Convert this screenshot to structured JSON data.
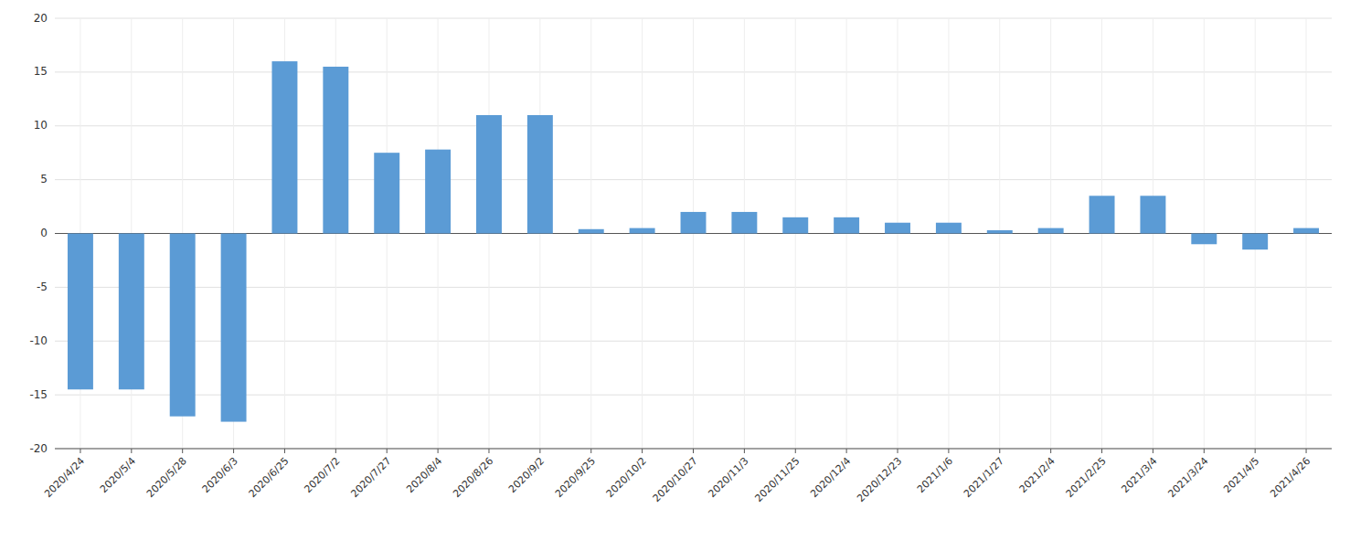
{
  "chart_data": {
    "type": "bar",
    "categories": [
      "2020/4/24",
      "2020/5/4",
      "2020/5/28",
      "2020/6/3",
      "2020/6/25",
      "2020/7/2",
      "2020/7/27",
      "2020/8/4",
      "2020/8/26",
      "2020/9/2",
      "2020/9/25",
      "2020/10/2",
      "2020/10/27",
      "2020/11/3",
      "2020/11/25",
      "2020/12/4",
      "2020/12/23",
      "2021/1/6",
      "2021/1/27",
      "2021/2/4",
      "2021/2/25",
      "2021/3/4",
      "2021/3/24",
      "2021/4/5",
      "2021/4/26"
    ],
    "values": [
      -14.5,
      -14.5,
      -17.0,
      -17.5,
      16.0,
      15.5,
      7.5,
      7.8,
      11.0,
      11.0,
      0.4,
      0.5,
      2.0,
      2.0,
      1.5,
      1.5,
      1.0,
      1.0,
      0.3,
      0.5,
      3.5,
      3.5,
      -1.0,
      -1.5,
      0.5
    ],
    "color": "#5B9BD5",
    "ylim": [
      -20,
      20
    ],
    "yticks": [
      -20,
      -15,
      -10,
      -5,
      0,
      5,
      10,
      15,
      20
    ],
    "grid": true
  }
}
